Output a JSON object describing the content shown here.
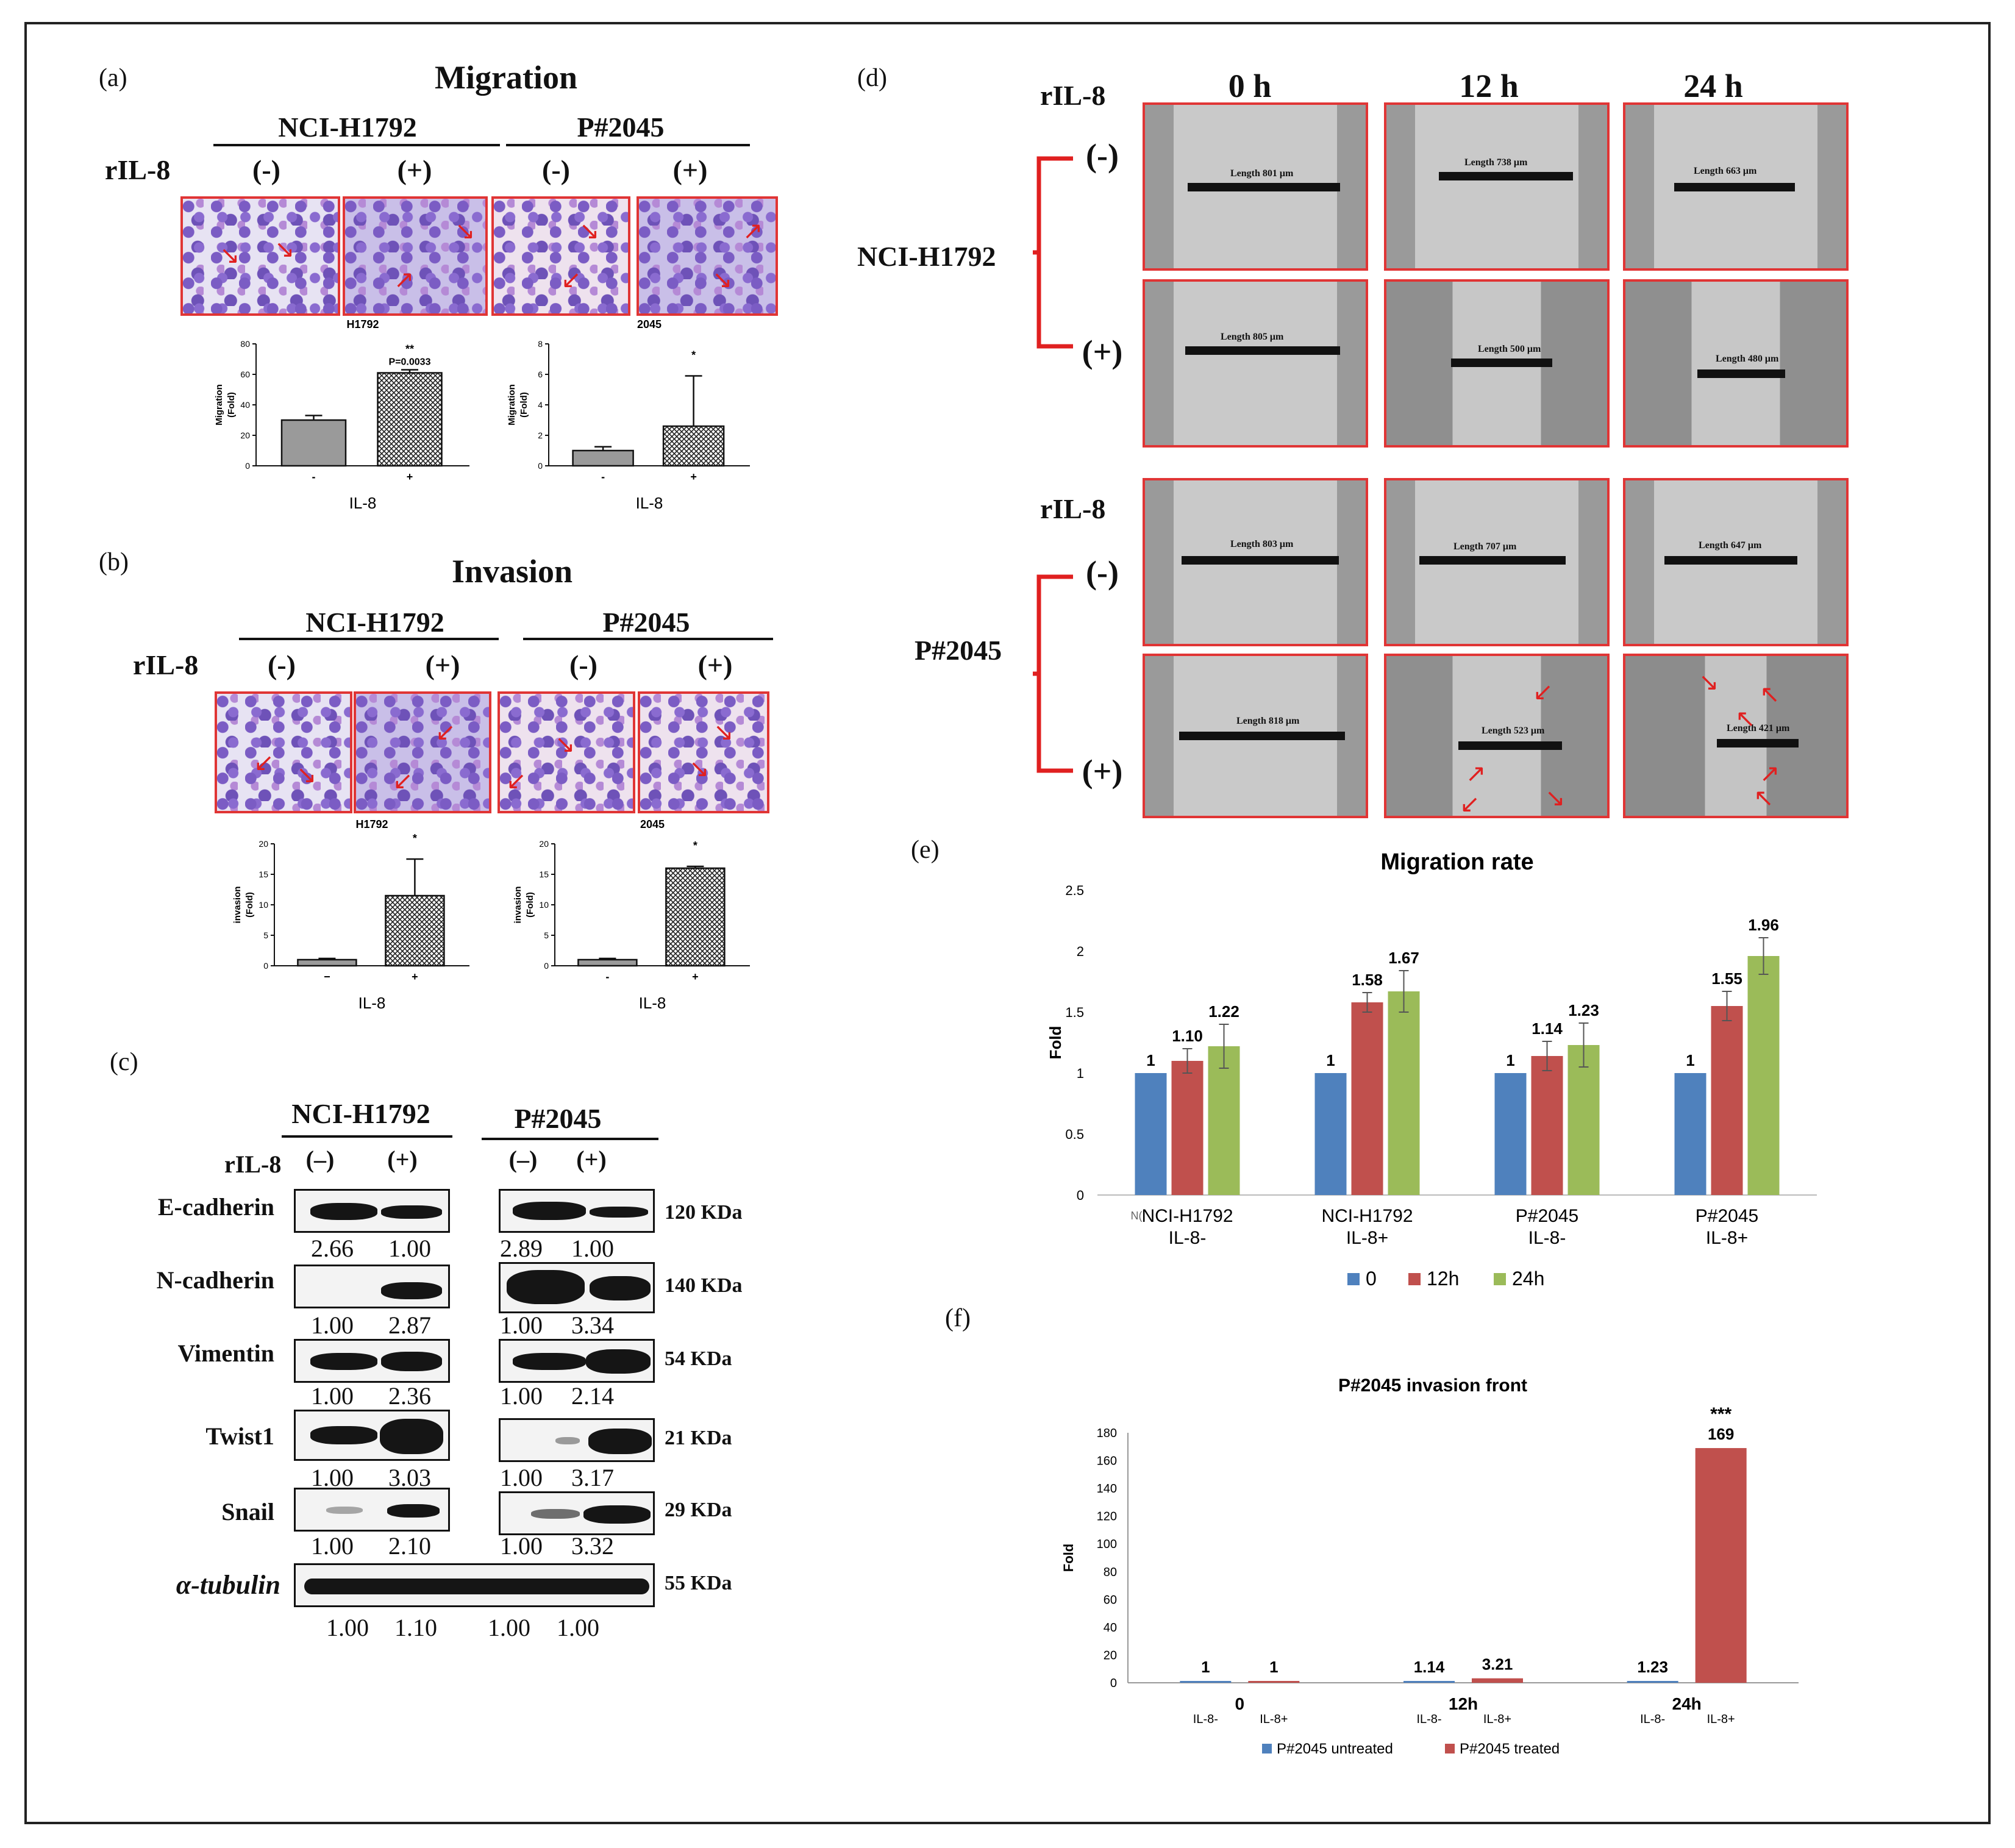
{
  "panel_labels": {
    "a": "(a)",
    "b": "(b)",
    "c": "(c)",
    "d": "(d)",
    "e": "(e)",
    "f": "(f)"
  },
  "migration": {
    "title": "Migration",
    "cell_line_1": "NCI-H1792",
    "cell_line_2": "P#2045",
    "ril8": "rIL-8",
    "neg": "(-)",
    "pos": "(+)",
    "chart_h1792_title": "H1792",
    "chart_2045_title": "2045",
    "significance_h1792": "**",
    "pvalue_h1792": "P=0.0033",
    "significance_2045": "*",
    "ylabel": "Migration",
    "ylabel2": "(Fold)",
    "xlabel": "IL-8",
    "xtick_neg": "-",
    "xtick_pos": "+"
  },
  "invasion": {
    "title": "Invasion",
    "cell_line_1": "NCI-H1792",
    "cell_line_2": "P#2045",
    "ril8": "rIL-8",
    "neg": "(-)",
    "pos": "(+)",
    "chart_h1792_title": "H1792",
    "chart_2045_title": "2045",
    "significance": "*",
    "ylabel": "invasion",
    "ylabel2": "(Fold)",
    "xlabel": "IL-8",
    "xtick_neg": "−",
    "xtick_pos": "+"
  },
  "western": {
    "cell_line_1": "NCI-H1792",
    "cell_line_2": "P#2045",
    "ril8": "rIL-8",
    "neg": "(–)",
    "pos": "(+)",
    "rows": [
      {
        "protein": "E-cadherin",
        "kda": "120 KDa",
        "v": [
          "2.66",
          "1.00",
          "2.89",
          "1.00"
        ]
      },
      {
        "protein": "N-cadherin",
        "kda": "140 KDa",
        "v": [
          "1.00",
          "2.87",
          "1.00",
          "3.34"
        ]
      },
      {
        "protein": "Vimentin",
        "kda": "54 KDa",
        "v": [
          "1.00",
          "2.36",
          "1.00",
          "2.14"
        ]
      },
      {
        "protein": "Twist1",
        "kda": "21 KDa",
        "v": [
          "1.00",
          "3.03",
          "1.00",
          "3.17"
        ]
      },
      {
        "protein": "Snail",
        "kda": "29 KDa",
        "v": [
          "1.00",
          "2.10",
          "1.00",
          "3.32"
        ]
      },
      {
        "protein": "α-tubulin",
        "kda": "55 KDa",
        "v": [
          "1.00",
          "1.10",
          "1.00",
          "1.00"
        ]
      }
    ]
  },
  "wound": {
    "ril8": "rIL-8",
    "times": [
      "0 h",
      "12 h",
      "24 h"
    ],
    "neg": "(-)",
    "pos": "(+)",
    "cell_line_1": "NCI-H1792",
    "cell_line_2": "P#2045",
    "lengths": [
      [
        "Length 801 μm",
        "Length 738 μm",
        "Length 663 μm"
      ],
      [
        "Length 805 μm",
        "Length 500 μm",
        "Length 480 μm"
      ],
      [
        "Length 803 μm",
        "Length 707 μm",
        "Length 647 μm"
      ],
      [
        "Length 818 μm",
        "Length 523 μm",
        "Length 421 μm"
      ]
    ]
  },
  "chart_data": [
    {
      "id": "a-h1792",
      "type": "bar",
      "title": "H1792",
      "categories": [
        "-",
        "+"
      ],
      "values": [
        30,
        61
      ],
      "errors": [
        3,
        2
      ],
      "ylabel": "Migration (Fold)",
      "xlabel": "IL-8",
      "ylim": [
        0,
        80
      ],
      "yticks": [
        0,
        20,
        40,
        60,
        80
      ]
    },
    {
      "id": "a-2045",
      "type": "bar",
      "title": "2045",
      "categories": [
        "-",
        "+"
      ],
      "values": [
        1.0,
        2.6
      ],
      "errors": [
        0.25,
        3.3
      ],
      "ylabel": "Migration (Fold)",
      "xlabel": "IL-8",
      "ylim": [
        0,
        8
      ],
      "yticks": [
        0,
        2,
        4,
        6,
        8
      ]
    },
    {
      "id": "b-h1792",
      "type": "bar",
      "title": "H1792",
      "categories": [
        "−",
        "+"
      ],
      "values": [
        1.0,
        11.5
      ],
      "errors": [
        0.2,
        6
      ],
      "ylabel": "invasion (Fold)",
      "xlabel": "IL-8",
      "ylim": [
        0,
        20
      ],
      "yticks": [
        0,
        5,
        10,
        15,
        20
      ]
    },
    {
      "id": "b-2045",
      "type": "bar",
      "title": "2045",
      "categories": [
        "-",
        "+"
      ],
      "values": [
        1.0,
        16
      ],
      "errors": [
        0.2,
        0.3
      ],
      "ylabel": "invasion (Fold)",
      "xlabel": "IL-8",
      "ylim": [
        0,
        20
      ],
      "yticks": [
        0,
        5,
        10,
        15,
        20
      ]
    },
    {
      "id": "e",
      "type": "bar",
      "title": "Migration rate",
      "categories": [
        "NCI-H1792\nIL-8-",
        "NCI-H1792\nIL-8+",
        "P#2045\nIL-8-",
        "P#2045\nIL-8+"
      ],
      "series": [
        {
          "name": "0",
          "color": "#4f81bd",
          "values": [
            1,
            1,
            1,
            1
          ],
          "labels": [
            "1",
            "1",
            "1",
            "1"
          ],
          "errors": [
            0,
            0,
            0,
            0
          ]
        },
        {
          "name": "12h",
          "color": "#c0504d",
          "values": [
            1.1,
            1.58,
            1.14,
            1.55
          ],
          "labels": [
            "1.10",
            "1.58",
            "1.14",
            "1.55"
          ],
          "errors": [
            0.1,
            0.08,
            0.12,
            0.12
          ]
        },
        {
          "name": "24h",
          "color": "#9bbb59",
          "values": [
            1.22,
            1.67,
            1.23,
            1.96
          ],
          "labels": [
            "1.22",
            "1.67",
            "1.23",
            "1.96"
          ],
          "errors": [
            0.18,
            0.17,
            0.18,
            0.15
          ]
        }
      ],
      "ylabel": "Fold",
      "ylim": [
        0,
        2.5
      ],
      "yticks": [
        "0",
        "0.5",
        "1",
        "1.5",
        "2",
        "2.5"
      ],
      "legend": "bottom",
      "stray_label": "N("
    },
    {
      "id": "f",
      "type": "bar",
      "title": "P#2045 invasion front",
      "categories": [
        "0",
        "12h",
        "24h"
      ],
      "subcategories": [
        "IL-8-",
        "IL-8+"
      ],
      "series": [
        {
          "name": "P#2045 untreated",
          "color": "#4f81bd",
          "values": [
            1,
            1.14,
            1.23
          ],
          "labels": [
            "1",
            "1.14",
            "1.23"
          ]
        },
        {
          "name": "P#2045 treated",
          "color": "#c0504d",
          "values": [
            1,
            3.21,
            169
          ],
          "labels": [
            "1",
            "3.21",
            "169"
          ]
        }
      ],
      "ylabel": "Fold",
      "ylim": [
        0,
        180
      ],
      "yticks": [
        "0",
        "20",
        "40",
        "60",
        "80",
        "100",
        "120",
        "140",
        "160",
        "180"
      ],
      "significance": "***",
      "legend": "bottom"
    }
  ]
}
